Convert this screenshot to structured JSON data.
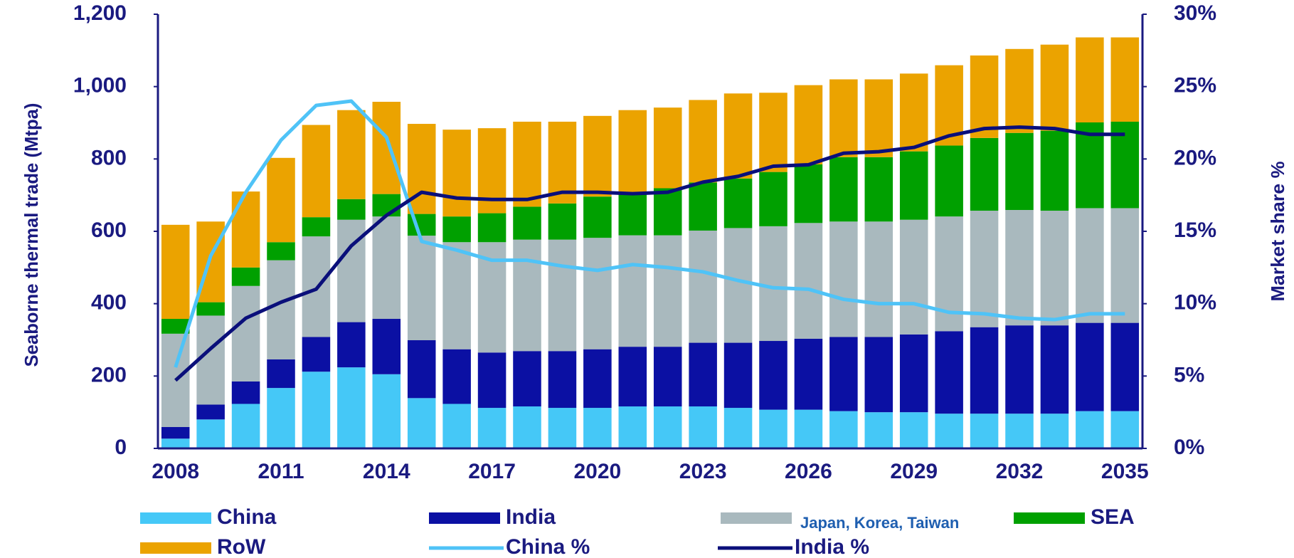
{
  "chart_data": {
    "type": "stacked-bar-line",
    "y_label": "Seaborne thermal trade (Mtpa)",
    "y2_label": "Market share %",
    "categories": [
      2008,
      null,
      null,
      2011,
      null,
      null,
      2014,
      null,
      null,
      2017,
      null,
      null,
      2020,
      null,
      null,
      2023,
      null,
      null,
      2026,
      null,
      null,
      2029,
      null,
      null,
      2032,
      null,
      null,
      2035
    ],
    "ylim": [
      0,
      1200
    ],
    "yticks": [
      0,
      200,
      400,
      600,
      800,
      {
        "value": 1000,
        "label": "1,000"
      },
      {
        "value": 1200,
        "label": "1,200"
      }
    ],
    "y2lim": [
      0,
      30
    ],
    "y2ticks": [
      {
        "value": 0,
        "label": "0%"
      },
      {
        "value": 5,
        "label": "5%"
      },
      {
        "value": 10,
        "label": "10%"
      },
      {
        "value": 15,
        "label": "15%"
      },
      {
        "value": 20,
        "label": "20%"
      },
      {
        "value": 25,
        "label": "25%"
      },
      {
        "value": 30,
        "label": "30%"
      }
    ],
    "series": [
      {
        "name": "China",
        "color": "#45c8f7",
        "kind": "bar",
        "values": [
          27,
          80,
          123,
          167,
          212,
          224,
          205,
          139,
          123,
          112,
          116,
          112,
          112,
          116,
          116,
          116,
          112,
          107,
          107,
          103,
          100,
          100,
          96,
          96,
          96,
          96,
          103,
          103
        ]
      },
      {
        "name": "India",
        "color": "#0b10a3",
        "kind": "bar",
        "values": [
          32,
          41,
          62,
          79,
          96,
          125,
          153,
          160,
          151,
          153,
          153,
          157,
          162,
          165,
          165,
          176,
          180,
          190,
          196,
          205,
          208,
          215,
          228,
          239,
          244,
          244,
          244,
          244
        ]
      },
      {
        "name": "Japan, Korea, Taiwan",
        "color": "#a9b9be",
        "kind": "bar",
        "values": [
          258,
          246,
          264,
          274,
          278,
          283,
          283,
          289,
          296,
          305,
          308,
          308,
          308,
          308,
          308,
          310,
          317,
          317,
          320,
          319,
          319,
          317,
          317,
          322,
          319,
          317,
          317,
          317
        ]
      },
      {
        "name": "SEA",
        "color": "#00a000",
        "kind": "bar",
        "values": [
          41,
          37,
          51,
          50,
          53,
          57,
          62,
          60,
          71,
          80,
          91,
          100,
          114,
          118,
          130,
          133,
          137,
          150,
          162,
          178,
          178,
          189,
          196,
          201,
          213,
          221,
          237,
          239
        ]
      },
      {
        "name": "RoW",
        "color": "#eba300",
        "kind": "bar",
        "values": [
          260,
          223,
          210,
          233,
          255,
          246,
          255,
          249,
          240,
          235,
          235,
          226,
          223,
          228,
          223,
          228,
          235,
          219,
          219,
          215,
          215,
          215,
          222,
          228,
          232,
          238,
          235,
          233
        ]
      },
      {
        "name": "China %",
        "color": "#4fc3f7",
        "kind": "line",
        "axis": "y2",
        "values": [
          5.6,
          13.3,
          17.7,
          21.3,
          23.7,
          24.0,
          21.5,
          14.3,
          13.7,
          13.0,
          13.0,
          12.6,
          12.3,
          12.7,
          12.5,
          12.2,
          11.6,
          11.1,
          11.0,
          10.3,
          10.0,
          10.0,
          9.4,
          9.3,
          9.0,
          8.9,
          9.3,
          9.3
        ]
      },
      {
        "name": "India %",
        "color": "#0a0f7a",
        "kind": "line",
        "axis": "y2",
        "values": [
          4.7,
          6.9,
          9.0,
          10.1,
          11.0,
          14.0,
          16.1,
          17.7,
          17.3,
          17.2,
          17.2,
          17.7,
          17.7,
          17.6,
          17.7,
          18.4,
          18.8,
          19.5,
          19.6,
          20.4,
          20.5,
          20.8,
          21.6,
          22.1,
          22.2,
          22.1,
          21.7,
          21.7
        ]
      }
    ]
  }
}
